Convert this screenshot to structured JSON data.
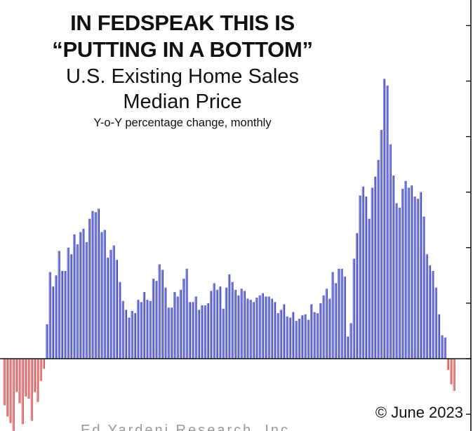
{
  "title": {
    "line1": "IN FEDSPEAK THIS IS",
    "line2": "“PUTTING IN A BOTTOM”",
    "line3": "U.S. Existing Home Sales",
    "line4": "Median Price",
    "subtitle": "Y-o-Y percentage change, monthly"
  },
  "copyright": "© June 2023",
  "footer_partial": "Ed Yardeni Research, Inc.",
  "colors": {
    "positive_fill": "#7b82e8",
    "positive_edge": "#2a2f9a",
    "negative_fill": "#ec8a8a",
    "negative_edge": "#b84444",
    "axis": "#111111"
  },
  "chart_data": {
    "type": "bar",
    "title": "U.S. Existing Home Sales Median Price",
    "subtitle": "Y-o-Y percentage change, monthly",
    "annotation": "IN FEDSPEAK THIS IS “PUTTING IN A BOTTOM”",
    "xlabel": "",
    "ylabel": "Y-o-Y % change",
    "y_axis_side": "right",
    "ylim": [
      -5,
      30
    ],
    "y_ticks": [
      -5,
      0,
      5,
      10,
      15,
      20,
      25,
      30
    ],
    "y_tick_labels_visible": false,
    "grid": false,
    "legend": null,
    "x_end_label": "June 2023",
    "values": [
      -4.2,
      -5.2,
      -5.8,
      -6.5,
      -3.0,
      -4.0,
      -5.9,
      -3.4,
      -3.6,
      -5.6,
      -3.0,
      -3.9,
      -2.0,
      -0.9,
      3.1,
      7.8,
      6.5,
      7.5,
      9.7,
      7.9,
      7.9,
      10.0,
      9.4,
      11.2,
      10.3,
      11.4,
      11.7,
      10.5,
      12.6,
      13.3,
      13.2,
      13.5,
      11.4,
      11.6,
      9.1,
      9.8,
      10.2,
      8.9,
      6.9,
      5.2,
      4.4,
      3.7,
      4.3,
      4.1,
      5.3,
      5.1,
      6.0,
      5.3,
      5.2,
      7.2,
      7.0,
      8.5,
      8.0,
      6.4,
      4.6,
      4.6,
      6.0,
      5.6,
      6.2,
      7.2,
      8.1,
      5.1,
      5.1,
      5.6,
      4.4,
      4.8,
      4.8,
      5.0,
      6.1,
      6.8,
      6.2,
      6.5,
      4.5,
      6.4,
      7.6,
      6.9,
      6.2,
      5.7,
      6.3,
      6.1,
      5.4,
      5.3,
      5.1,
      5.5,
      5.7,
      5.9,
      5.6,
      5.6,
      5.4,
      5.1,
      4.1,
      4.4,
      4.9,
      3.8,
      3.7,
      4.2,
      3.4,
      3.6,
      3.9,
      4.0,
      3.5,
      4.9,
      4.2,
      4.1,
      5.0,
      5.7,
      6.3,
      5.4,
      7.8,
      6.8,
      8.1,
      8.1,
      7.4,
      2.0,
      3.2,
      9.0,
      11.3,
      14.7,
      15.5,
      14.6,
      12.6,
      15.4,
      16.4,
      17.9,
      20.6,
      25.2,
      24.6,
      19.3,
      16.5,
      14.0,
      13.6,
      15.3,
      16.0,
      15.4,
      15.6,
      14.6,
      14.4,
      15.0,
      12.8,
      9.4,
      8.4,
      7.9,
      6.4,
      4.0,
      2.1,
      1.9,
      -1.0,
      -2.3,
      -2.9
    ],
    "note": "Monthly series; earliest bars on the left, latest (mid-2023) on the right. Values estimated from pixel heights (5% per axis tick)."
  }
}
